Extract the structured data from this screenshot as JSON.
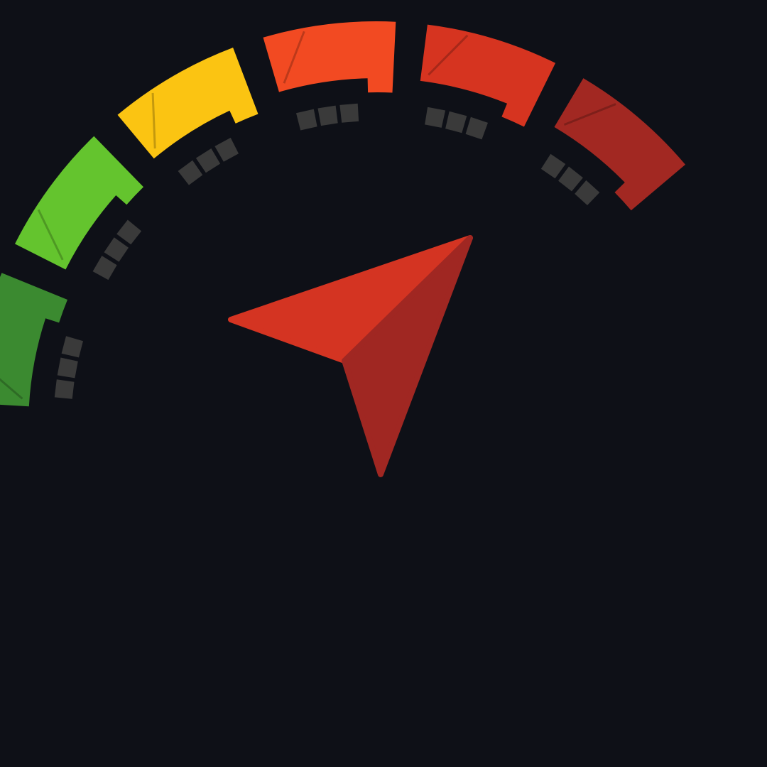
{
  "colors": {
    "background": "#0e1017",
    "tick": "#3a3a3a",
    "needle_light": "#d43422",
    "needle_dark": "#a02722"
  },
  "gauge": {
    "segments": [
      {
        "name": "segment-1",
        "color": "#3b8a30"
      },
      {
        "name": "segment-2",
        "color": "#64c42e"
      },
      {
        "name": "segment-3",
        "color": "#fbc412"
      },
      {
        "name": "segment-4",
        "color": "#f24a22"
      },
      {
        "name": "segment-5",
        "color": "#d63420"
      },
      {
        "name": "segment-6",
        "color": "#a22822"
      }
    ],
    "icon": "navigation-arrow-icon"
  }
}
